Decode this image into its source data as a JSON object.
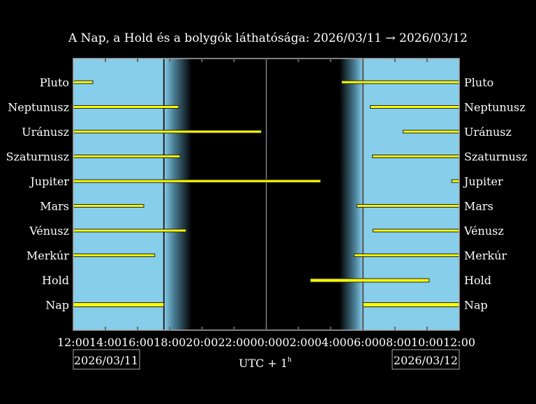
{
  "chart_data": {
    "type": "timeline",
    "title": "A Nap, a Hold és a bolygók láthatósága: 2026/03/11 → 2026/03/12",
    "xlabel": "UTC + 1",
    "xlabel_sup": "h",
    "date_left": "2026/03/11",
    "date_right": "2026/03/12",
    "x_range": [
      "2026/03/11 12:00",
      "2026/03/12 12:00"
    ],
    "x_tick_labels": [
      "12:00",
      "14:00",
      "16:00",
      "18:00",
      "20:00",
      "22:00",
      "00:00",
      "02:00",
      "04:00",
      "06:00",
      "08:00",
      "10:00",
      "12:00"
    ],
    "sunset": "2026/03/11 17:38",
    "sunrise": "2026/03/12 06:01",
    "dusk_end": "2026/03/11 19:22",
    "dawn_start": "2026/03/12 04:33",
    "midnight": "2026/03/12 00:00",
    "colors": {
      "day": "#87ceeb",
      "night": "#000000",
      "bar": "#ffff00",
      "bar_edge": "#222222",
      "frame": "#aaaaaa"
    },
    "bodies": [
      {
        "name": "Pluto",
        "intervals": [
          [
            "2026/03/11 12:00",
            "2026/03/11 13:13"
          ],
          [
            "2026/03/12 04:41",
            "2026/03/12 12:00"
          ]
        ]
      },
      {
        "name": "Neptunusz",
        "intervals": [
          [
            "2026/03/11 12:00",
            "2026/03/11 18:33"
          ],
          [
            "2026/03/12 06:28",
            "2026/03/12 12:00"
          ]
        ]
      },
      {
        "name": "Uránusz",
        "intervals": [
          [
            "2026/03/11 12:00",
            "2026/03/11 23:42"
          ],
          [
            "2026/03/12 08:30",
            "2026/03/12 12:00"
          ]
        ]
      },
      {
        "name": "Szaturnusz",
        "intervals": [
          [
            "2026/03/11 12:00",
            "2026/03/11 18:38"
          ],
          [
            "2026/03/12 06:36",
            "2026/03/12 12:00"
          ]
        ]
      },
      {
        "name": "Jupiter",
        "intervals": [
          [
            "2026/03/11 12:00",
            "2026/03/12 03:23"
          ],
          [
            "2026/03/12 11:32",
            "2026/03/12 12:00"
          ]
        ]
      },
      {
        "name": "Mars",
        "intervals": [
          [
            "2026/03/11 12:00",
            "2026/03/11 16:23"
          ],
          [
            "2026/03/12 05:38",
            "2026/03/12 12:00"
          ]
        ]
      },
      {
        "name": "Vénusz",
        "intervals": [
          [
            "2026/03/11 12:00",
            "2026/03/11 19:01"
          ],
          [
            "2026/03/12 06:38",
            "2026/03/12 12:00"
          ]
        ]
      },
      {
        "name": "Merkúr",
        "intervals": [
          [
            "2026/03/11 12:00",
            "2026/03/11 17:04"
          ],
          [
            "2026/03/12 05:28",
            "2026/03/12 12:00"
          ]
        ]
      },
      {
        "name": "Hold",
        "intervals": [
          [
            "2026/03/12 02:44",
            "2026/03/12 10:08"
          ]
        ]
      },
      {
        "name": "Nap",
        "intervals": [
          [
            "2026/03/11 12:00",
            "2026/03/11 17:38"
          ],
          [
            "2026/03/12 06:01",
            "2026/03/12 12:00"
          ]
        ]
      }
    ]
  }
}
